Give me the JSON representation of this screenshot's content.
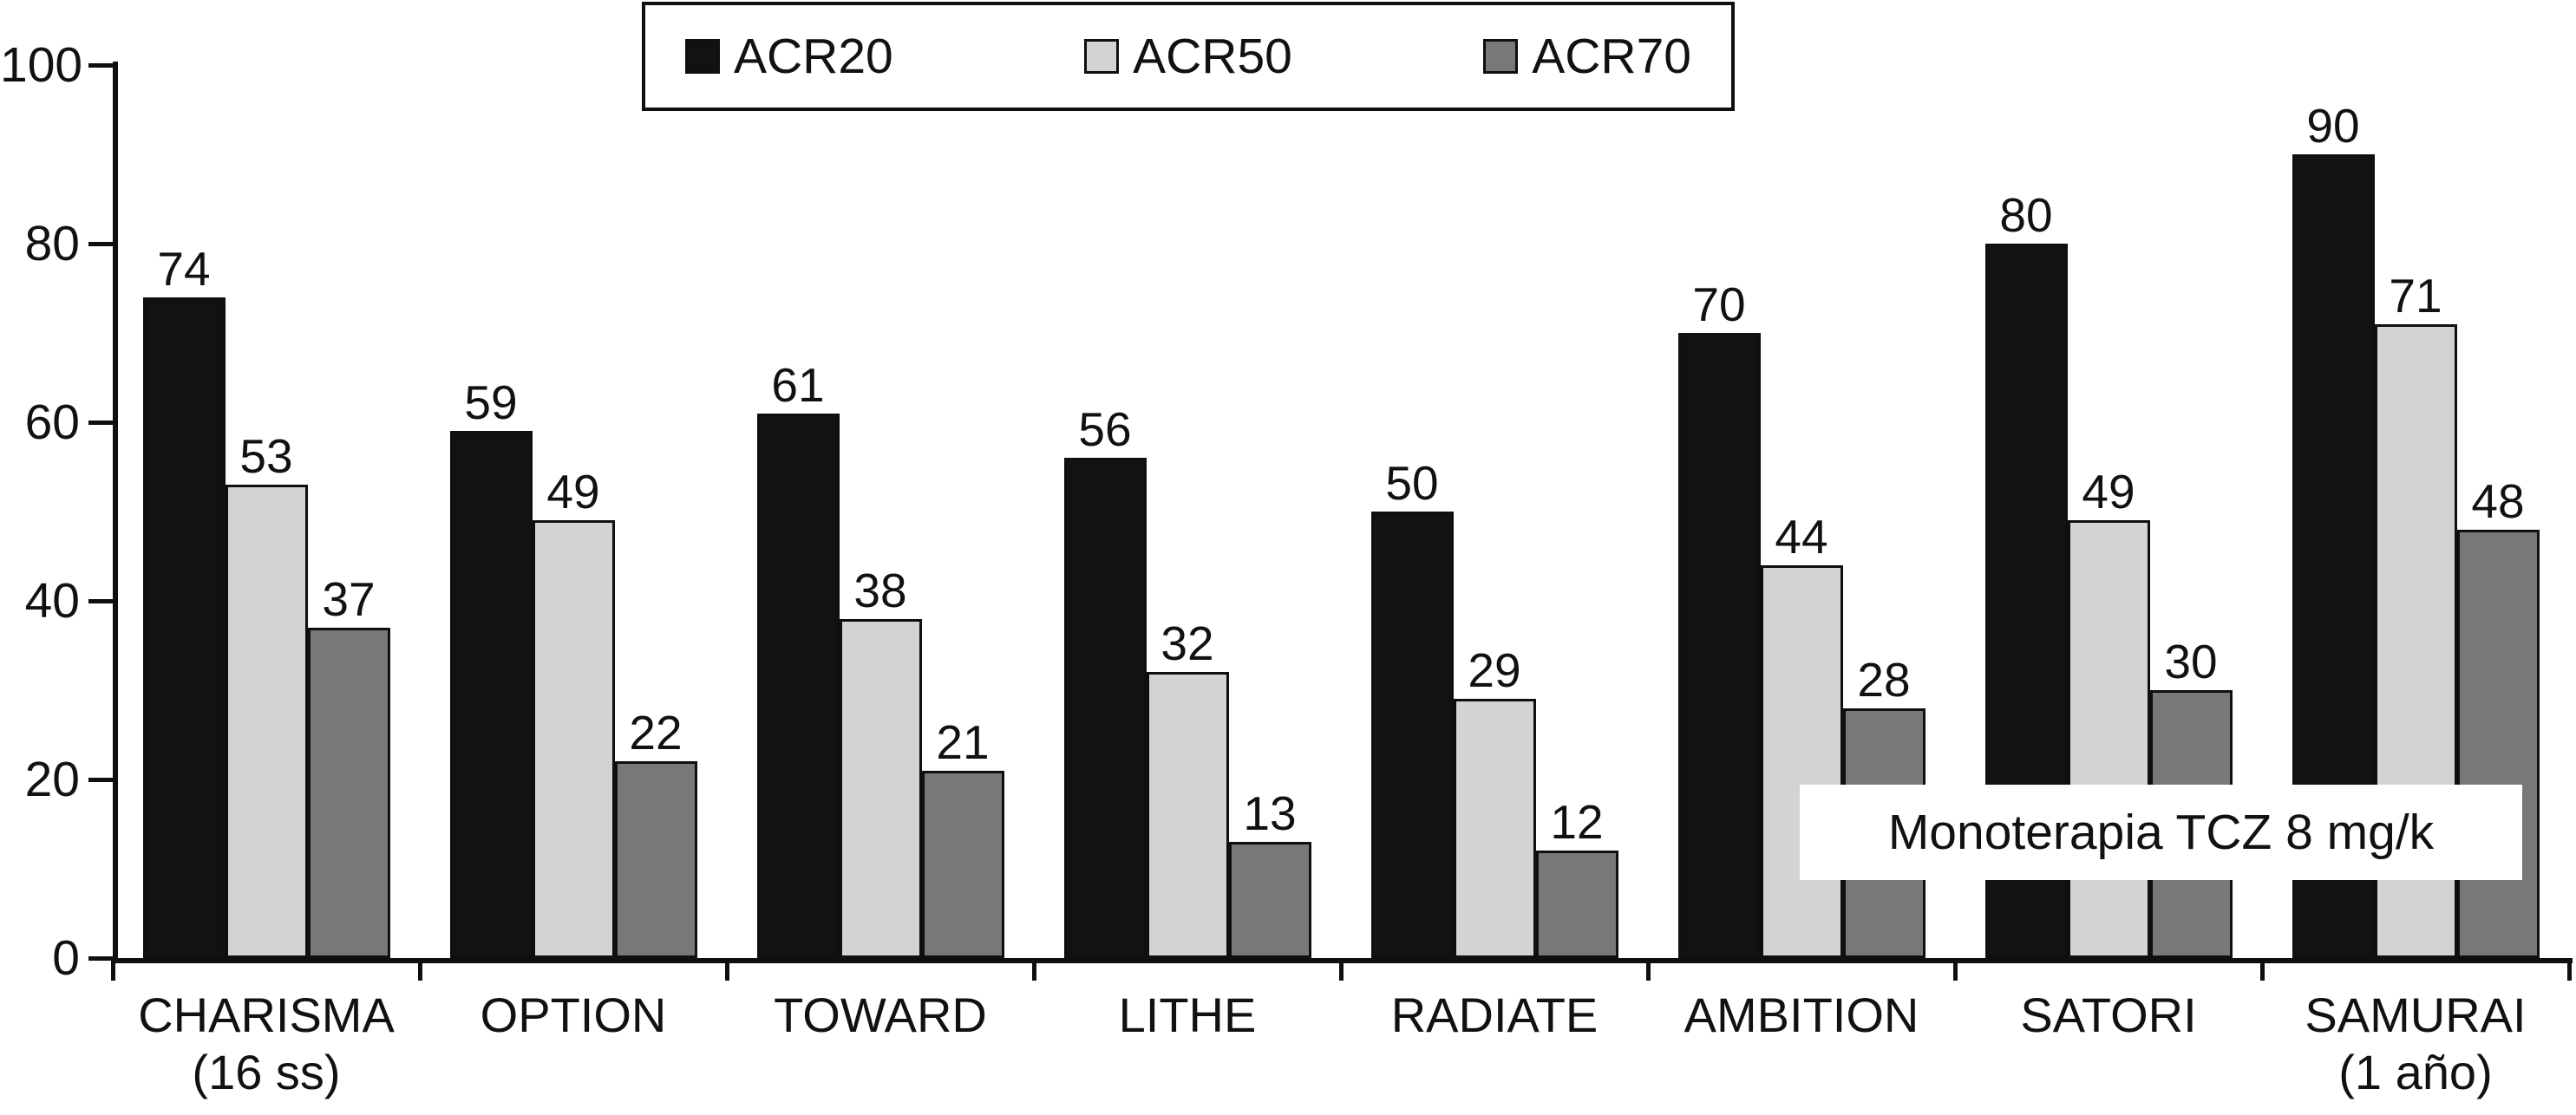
{
  "chart_data": {
    "type": "bar",
    "title": "",
    "xlabel": "",
    "ylabel": "",
    "ylim": [
      0,
      100
    ],
    "yticks": [
      0,
      20,
      40,
      60,
      80,
      100
    ],
    "grid": false,
    "legend_position": "top-center",
    "categories": [
      [
        "CHARISMA",
        "(16 ss)"
      ],
      [
        "OPTION"
      ],
      [
        "TOWARD"
      ],
      [
        "LITHE"
      ],
      [
        "RADIATE"
      ],
      [
        "AMBITION"
      ],
      [
        "SATORI"
      ],
      [
        "SAMURAI",
        "(1 año)"
      ]
    ],
    "series": [
      {
        "name": "ACR20",
        "color": "#121212",
        "values": [
          74,
          59,
          61,
          56,
          50,
          70,
          80,
          90
        ]
      },
      {
        "name": "ACR50",
        "color": "#d3d3d3",
        "values": [
          53,
          49,
          38,
          32,
          29,
          44,
          49,
          71
        ]
      },
      {
        "name": "ACR70",
        "color": "#787878",
        "values": [
          37,
          22,
          21,
          13,
          12,
          28,
          30,
          48
        ]
      }
    ],
    "annotation": "Monoterapia TCZ 8 mg/k",
    "axis_color": "#0f0f0f",
    "background_color": "#ffffff"
  }
}
